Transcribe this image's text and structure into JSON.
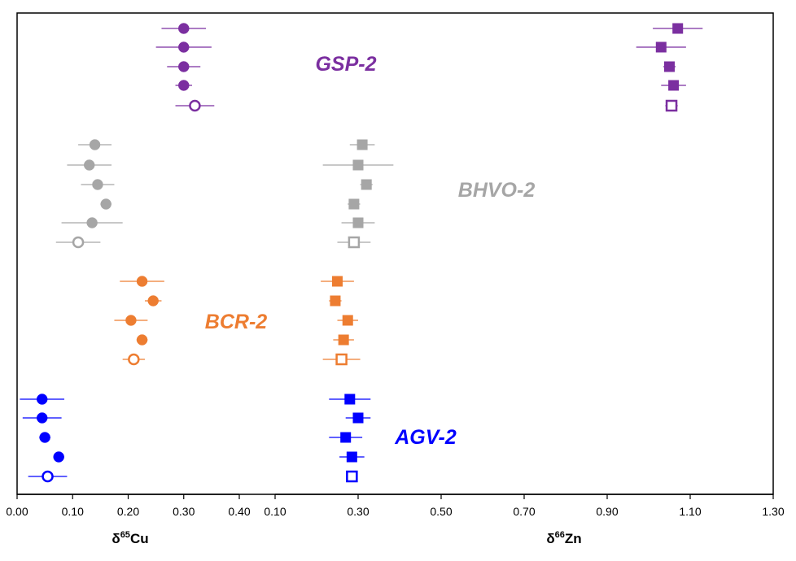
{
  "chart_data": [
    {
      "type": "scatter",
      "title": "",
      "xlabel": {
        "delta": "δ",
        "mass": "65",
        "element": "Cu"
      },
      "ylabel": "",
      "xlim": [
        0.0,
        0.4
      ],
      "xticks": [
        "0.00",
        "0.10",
        "0.20",
        "0.30",
        "0.40"
      ],
      "grid": false,
      "groups": [
        {
          "name": "GSP-2",
          "color": "#7B2FA0",
          "points": [
            {
              "x": 0.3,
              "err": 0.04,
              "open": false
            },
            {
              "x": 0.3,
              "err": 0.05,
              "open": false
            },
            {
              "x": 0.3,
              "err": 0.03,
              "open": false
            },
            {
              "x": 0.3,
              "err": 0.015,
              "open": false
            },
            {
              "x": 0.32,
              "err": 0.035,
              "open": true
            }
          ]
        },
        {
          "name": "BHVO-2",
          "color": "#A6A6A6",
          "points": [
            {
              "x": 0.14,
              "err": 0.03,
              "open": false
            },
            {
              "x": 0.13,
              "err": 0.04,
              "open": false
            },
            {
              "x": 0.145,
              "err": 0.03,
              "open": false
            },
            {
              "x": 0.16,
              "err": 0.01,
              "open": false
            },
            {
              "x": 0.135,
              "err": 0.055,
              "open": false
            },
            {
              "x": 0.11,
              "err": 0.04,
              "open": true
            }
          ]
        },
        {
          "name": "BCR-2",
          "color": "#ED7D31",
          "points": [
            {
              "x": 0.225,
              "err": 0.04,
              "open": false
            },
            {
              "x": 0.245,
              "err": 0.015,
              "open": false
            },
            {
              "x": 0.205,
              "err": 0.03,
              "open": false
            },
            {
              "x": 0.225,
              "err": 0.01,
              "open": false
            },
            {
              "x": 0.21,
              "err": 0.02,
              "open": true
            }
          ]
        },
        {
          "name": "AGV-2",
          "color": "#0000FF",
          "points": [
            {
              "x": 0.045,
              "err": 0.04,
              "open": false
            },
            {
              "x": 0.045,
              "err": 0.035,
              "open": false
            },
            {
              "x": 0.05,
              "err": 0.01,
              "open": false
            },
            {
              "x": 0.075,
              "err": 0.005,
              "open": false
            },
            {
              "x": 0.055,
              "err": 0.035,
              "open": true
            }
          ]
        }
      ]
    },
    {
      "type": "scatter",
      "title": "",
      "xlabel": {
        "delta": "δ",
        "mass": "66",
        "element": "Zn"
      },
      "ylabel": "",
      "xlim": [
        0.1,
        1.3
      ],
      "xticks": [
        "0.10",
        "0.30",
        "0.50",
        "0.70",
        "0.90",
        "1.10",
        "1.30"
      ],
      "grid": false,
      "groups": [
        {
          "name": "GSP-2",
          "color": "#7B2FA0",
          "points": [
            {
              "x": 1.07,
              "err": 0.06,
              "open": false
            },
            {
              "x": 1.03,
              "err": 0.06,
              "open": false
            },
            {
              "x": 1.05,
              "err": 0.015,
              "open": false
            },
            {
              "x": 1.06,
              "err": 0.03,
              "open": false
            },
            {
              "x": 1.055,
              "err": 0.015,
              "open": true
            }
          ]
        },
        {
          "name": "BHVO-2",
          "color": "#A6A6A6",
          "points": [
            {
              "x": 0.31,
              "err": 0.03,
              "open": false
            },
            {
              "x": 0.3,
              "err": 0.085,
              "open": false
            },
            {
              "x": 0.32,
              "err": 0.015,
              "open": false
            },
            {
              "x": 0.29,
              "err": 0.015,
              "open": false
            },
            {
              "x": 0.3,
              "err": 0.04,
              "open": false
            },
            {
              "x": 0.29,
              "err": 0.04,
              "open": true
            }
          ]
        },
        {
          "name": "BCR-2",
          "color": "#ED7D31",
          "points": [
            {
              "x": 0.25,
              "err": 0.04,
              "open": false
            },
            {
              "x": 0.245,
              "err": 0.015,
              "open": false
            },
            {
              "x": 0.275,
              "err": 0.025,
              "open": false
            },
            {
              "x": 0.265,
              "err": 0.025,
              "open": false
            },
            {
              "x": 0.26,
              "err": 0.045,
              "open": true
            }
          ]
        },
        {
          "name": "AGV-2",
          "color": "#0000FF",
          "points": [
            {
              "x": 0.28,
              "err": 0.05,
              "open": false
            },
            {
              "x": 0.3,
              "err": 0.03,
              "open": false
            },
            {
              "x": 0.27,
              "err": 0.04,
              "open": false
            },
            {
              "x": 0.285,
              "err": 0.03,
              "open": false
            },
            {
              "x": 0.285,
              "err": 0.01,
              "open": true
            }
          ]
        }
      ]
    }
  ],
  "group_labels": [
    {
      "name": "GSP-2",
      "color": "#7B2FA0"
    },
    {
      "name": "BHVO-2",
      "color": "#A6A6A6"
    },
    {
      "name": "BCR-2",
      "color": "#ED7D31"
    },
    {
      "name": "AGV-2",
      "color": "#0000FF"
    }
  ]
}
